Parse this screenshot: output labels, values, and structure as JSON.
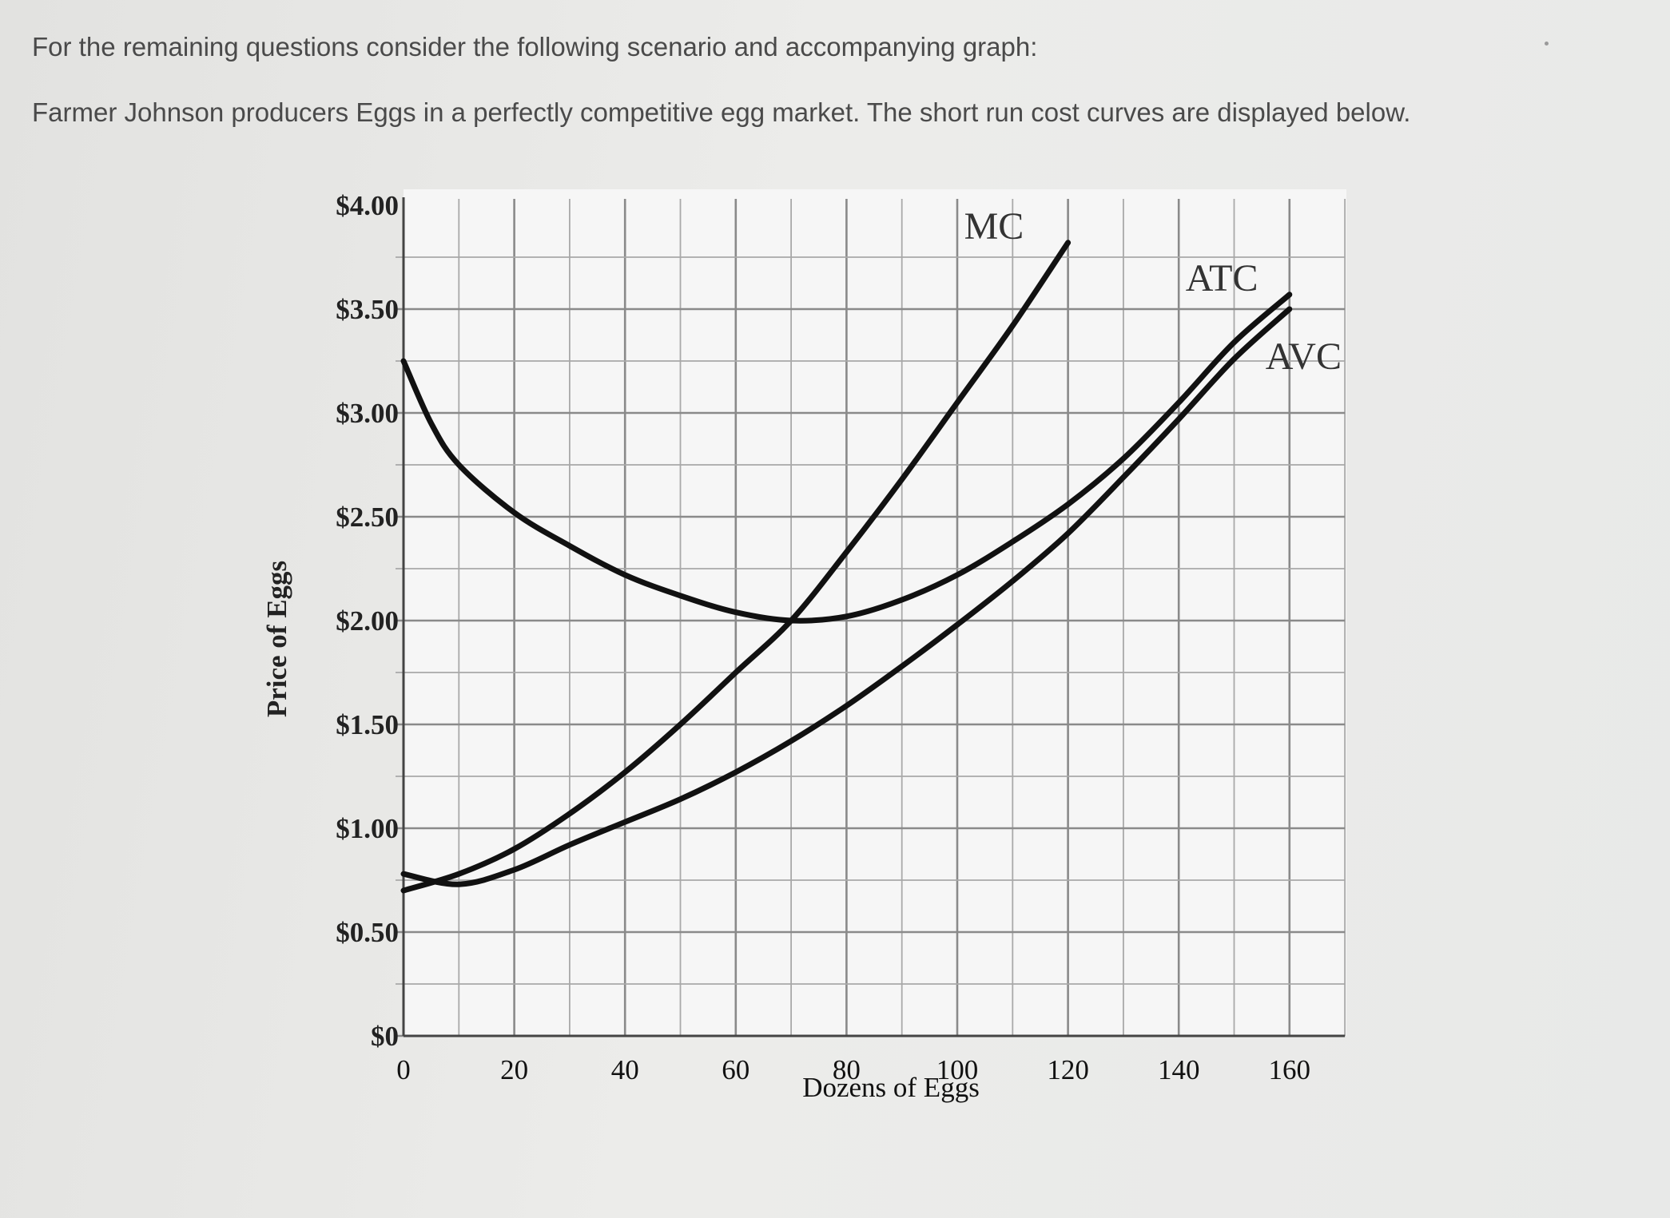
{
  "page": {
    "intro_line_1": "For the remaining questions consider the following scenario and accompanying graph:",
    "intro_line_2": "Farmer Johnson producers Eggs in a perfectly competitive egg market. The short run cost curves are displayed below."
  },
  "chart_data": {
    "type": "line",
    "title": "",
    "xlabel": "Dozens of Eggs",
    "ylabel": "Price of Eggs",
    "xlim": [
      0,
      170
    ],
    "ylim": [
      0,
      4
    ],
    "x_ticks": [
      0,
      20,
      40,
      60,
      80,
      100,
      120,
      140,
      160
    ],
    "x_tick_labels": [
      "0",
      "20",
      "40",
      "60",
      "80",
      "100",
      "120",
      "140",
      "160"
    ],
    "y_ticks": [
      0,
      0.5,
      1,
      1.5,
      2,
      2.5,
      3,
      3.5,
      4
    ],
    "y_tick_labels": [
      "$0",
      "$0.50",
      "$1.00",
      "$1.50",
      "$2.00",
      "$2.50",
      "$3.00",
      "$3.50",
      "$4.00"
    ],
    "grid": true,
    "grid_step_x": 10,
    "grid_step_y": 0.25,
    "line_color": "#111111",
    "series": [
      {
        "name": "MC",
        "x": [
          0,
          10,
          20,
          30,
          40,
          50,
          60,
          70,
          80,
          90,
          100,
          110,
          120
        ],
        "y": [
          0.7,
          0.78,
          0.9,
          1.07,
          1.27,
          1.5,
          1.75,
          2.0,
          2.33,
          2.68,
          3.05,
          3.42,
          3.82
        ]
      },
      {
        "name": "ATC",
        "x": [
          0,
          5,
          10,
          20,
          30,
          40,
          50,
          60,
          70,
          80,
          90,
          100,
          110,
          120,
          130,
          140,
          150,
          160
        ],
        "y": [
          3.25,
          2.95,
          2.75,
          2.52,
          2.36,
          2.22,
          2.12,
          2.04,
          2.0,
          2.02,
          2.1,
          2.22,
          2.38,
          2.56,
          2.78,
          3.05,
          3.34,
          3.57
        ]
      },
      {
        "name": "AVC",
        "x": [
          0,
          10,
          20,
          30,
          40,
          50,
          60,
          70,
          80,
          90,
          100,
          110,
          120,
          130,
          140,
          150,
          160
        ],
        "y": [
          0.78,
          0.73,
          0.8,
          0.92,
          1.03,
          1.14,
          1.27,
          1.42,
          1.59,
          1.78,
          1.98,
          2.19,
          2.42,
          2.69,
          2.97,
          3.26,
          3.5
        ]
      }
    ]
  }
}
